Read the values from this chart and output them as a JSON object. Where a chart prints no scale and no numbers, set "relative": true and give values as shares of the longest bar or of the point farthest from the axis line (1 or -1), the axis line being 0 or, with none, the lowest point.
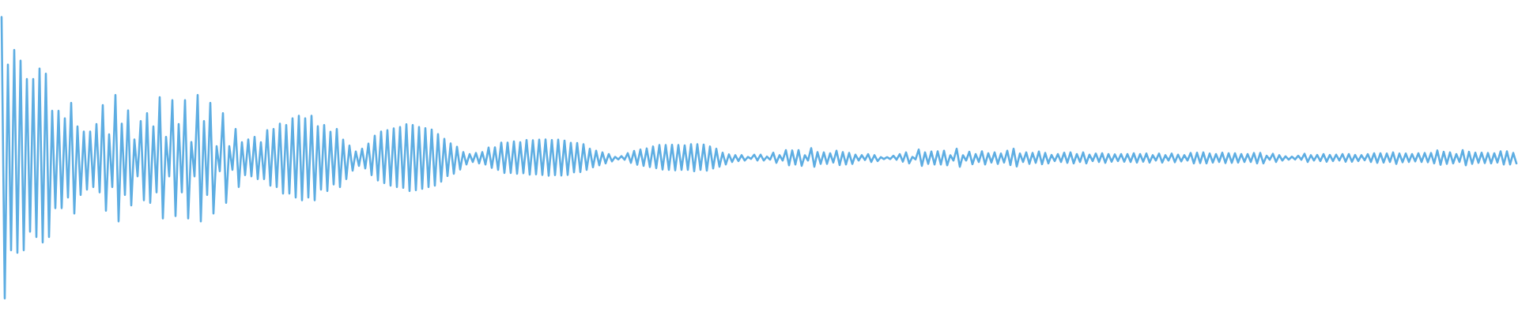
{
  "chart_data": {
    "type": "line",
    "relative": true,
    "color": "#5dade2",
    "categories": [
      null,
      null,
      null,
      null,
      null,
      null,
      null,
      null,
      null,
      null,
      null,
      null,
      null,
      null,
      null,
      null,
      null,
      null,
      null,
      null,
      null,
      null,
      null,
      null,
      null,
      null,
      null,
      null,
      null,
      null,
      null,
      null,
      null,
      null,
      null,
      null,
      null,
      null,
      null,
      null,
      null,
      null,
      null,
      null,
      null,
      null,
      null,
      null,
      null,
      null,
      null,
      null,
      null,
      null,
      null,
      null,
      null,
      null,
      null,
      null,
      null,
      null,
      null,
      null,
      null,
      null,
      null,
      null,
      null,
      null,
      null,
      null,
      null,
      null,
      null,
      null,
      null,
      null,
      null,
      null,
      null,
      null,
      null,
      null,
      null,
      null,
      null,
      null,
      null,
      null,
      null,
      null,
      null,
      null,
      null,
      null,
      null,
      null,
      null,
      null,
      null,
      null,
      null,
      null,
      null,
      null,
      null,
      null,
      null,
      null,
      null,
      null,
      null,
      null,
      null,
      null,
      null,
      null,
      null,
      null,
      null,
      null,
      null,
      null,
      null,
      null,
      null,
      null,
      null,
      null,
      null,
      null,
      null,
      null,
      null,
      null,
      null,
      null,
      null,
      null,
      null,
      null,
      null,
      null,
      null,
      null,
      null,
      null,
      null,
      null,
      null,
      null,
      null,
      null,
      null,
      null,
      null,
      null,
      null,
      null,
      null,
      null,
      null,
      null,
      null,
      null,
      null,
      null,
      null,
      null,
      null,
      null,
      null,
      null,
      null,
      null,
      null,
      null,
      null,
      null,
      null,
      null,
      null,
      null,
      null,
      null,
      null,
      null,
      null,
      null,
      null,
      null,
      null,
      null,
      null,
      null,
      null,
      null,
      null,
      null,
      null,
      null,
      null,
      null,
      null,
      null,
      null,
      null,
      null,
      null,
      null,
      null,
      null,
      null,
      null,
      null,
      null,
      null,
      null,
      null,
      null,
      null,
      null,
      null,
      null,
      null,
      null,
      null,
      null,
      null,
      null,
      null,
      null,
      null,
      null,
      null,
      null,
      null,
      null,
      null,
      null,
      null,
      null,
      null,
      null,
      null,
      null,
      null,
      null,
      null,
      null,
      null,
      null,
      null,
      null,
      null,
      null,
      null,
      null,
      null,
      null,
      null,
      null,
      null,
      null,
      null,
      null,
      null,
      null,
      null,
      null,
      null,
      null,
      null,
      null,
      null,
      null,
      null,
      null,
      null,
      null,
      null,
      null,
      null,
      null,
      null,
      null,
      null,
      null,
      null,
      null,
      null,
      null,
      null,
      null,
      null,
      null,
      null,
      null,
      null,
      null,
      null,
      null,
      null,
      null,
      null,
      null,
      null,
      null,
      null,
      null,
      null,
      null,
      null,
      null,
      null,
      null,
      null,
      null,
      null,
      null,
      null,
      null,
      null,
      null,
      null,
      null,
      null,
      null,
      null,
      null,
      null,
      null,
      null,
      null,
      null,
      null,
      null,
      null,
      null,
      null,
      null,
      null,
      null,
      null,
      null,
      null,
      null,
      null,
      null,
      null,
      null,
      null,
      null,
      null,
      null,
      null,
      null,
      null,
      null,
      null,
      null,
      null,
      null,
      null,
      null,
      null,
      null,
      null,
      null,
      null,
      null,
      null,
      null,
      null,
      null,
      null,
      null,
      null,
      null,
      null,
      null,
      null,
      null,
      null,
      null,
      null,
      null,
      null,
      null,
      null,
      null,
      null,
      null,
      null,
      null,
      null,
      null,
      null,
      null,
      null,
      null,
      null,
      null,
      null,
      null,
      null,
      null,
      null,
      null,
      null,
      null,
      null,
      null,
      null,
      null,
      null,
      null,
      null,
      null,
      null,
      null,
      null,
      null,
      null,
      null,
      null,
      null,
      null,
      null,
      null,
      null,
      null,
      null,
      null,
      null,
      null,
      null,
      null,
      null,
      null,
      null,
      null,
      null,
      null,
      null,
      null,
      null,
      null,
      null,
      null,
      null,
      null,
      null,
      null,
      null,
      null,
      null,
      null,
      null,
      null,
      null,
      null,
      null,
      null,
      null,
      null,
      null,
      null,
      null,
      null,
      null,
      null,
      null,
      null,
      null,
      null,
      null,
      null,
      null
    ],
    "values": [
      1,
      0,
      0.831,
      0.171,
      0.883,
      0.162,
      0.845,
      0.171,
      0.78,
      0.237,
      0.78,
      0.218,
      0.817,
      0.199,
      0.799,
      0.218,
      0.667,
      0.321,
      0.667,
      0.321,
      0.64,
      0.359,
      0.695,
      0.302,
      0.611,
      0.368,
      0.593,
      0.387,
      0.593,
      0.396,
      0.62,
      0.377,
      0.687,
      0.312,
      0.583,
      0.396,
      0.723,
      0.274,
      0.621,
      0.368,
      0.668,
      0.331,
      0.565,
      0.434,
      0.63,
      0.349,
      0.658,
      0.34,
      0.611,
      0.377,
      0.715,
      0.284,
      0.574,
      0.434,
      0.705,
      0.293,
      0.62,
      0.377,
      0.705,
      0.284,
      0.556,
      0.434,
      0.723,
      0.274,
      0.63,
      0.368,
      0.695,
      0.302,
      0.541,
      0.452,
      0.658,
      0.34,
      0.541,
      0.457,
      0.602,
      0.396,
      0.555,
      0.438,
      0.565,
      0.434,
      0.574,
      0.424,
      0.555,
      0.424,
      0.598,
      0.401,
      0.602,
      0.396,
      0.621,
      0.373,
      0.616,
      0.373,
      0.64,
      0.359,
      0.649,
      0.349,
      0.64,
      0.359,
      0.649,
      0.349,
      0.612,
      0.387,
      0.616,
      0.382,
      0.592,
      0.405,
      0.602,
      0.396,
      0.564,
      0.424,
      0.543,
      0.454,
      0.522,
      0.471,
      0.532,
      0.462,
      0.55,
      0.438,
      0.578,
      0.419,
      0.593,
      0.41,
      0.598,
      0.401,
      0.604,
      0.396,
      0.609,
      0.393,
      0.619,
      0.382,
      0.616,
      0.385,
      0.609,
      0.39,
      0.605,
      0.396,
      0.6,
      0.401,
      0.584,
      0.415,
      0.567,
      0.435,
      0.551,
      0.443,
      0.539,
      0.458,
      0.52,
      0.476,
      0.513,
      0.485,
      0.517,
      0.48,
      0.52,
      0.476,
      0.536,
      0.464,
      0.537,
      0.457,
      0.554,
      0.446,
      0.554,
      0.446,
      0.558,
      0.443,
      0.555,
      0.445,
      0.563,
      0.44,
      0.562,
      0.441,
      0.564,
      0.439,
      0.565,
      0.436,
      0.563,
      0.438,
      0.564,
      0.437,
      0.561,
      0.439,
      0.553,
      0.448,
      0.552,
      0.449,
      0.548,
      0.457,
      0.532,
      0.466,
      0.525,
      0.473,
      0.519,
      0.48,
      0.513,
      0.487,
      0.503,
      0.494,
      0.506,
      0.493,
      0.516,
      0.482,
      0.524,
      0.475,
      0.529,
      0.471,
      0.533,
      0.467,
      0.54,
      0.463,
      0.545,
      0.458,
      0.545,
      0.457,
      0.546,
      0.455,
      0.545,
      0.457,
      0.544,
      0.457,
      0.548,
      0.452,
      0.548,
      0.457,
      0.547,
      0.454,
      0.54,
      0.462,
      0.532,
      0.468,
      0.518,
      0.476,
      0.512,
      0.485,
      0.509,
      0.488,
      0.509,
      0.49,
      0.503,
      0.496,
      0.511,
      0.49,
      0.511,
      0.49,
      0.504,
      0.493,
      0.518,
      0.482,
      0.509,
      0.49,
      0.527,
      0.473,
      0.526,
      0.476,
      0.527,
      0.471,
      0.509,
      0.49,
      0.534,
      0.468,
      0.52,
      0.478,
      0.519,
      0.478,
      0.516,
      0.483,
      0.525,
      0.474,
      0.52,
      0.476,
      0.517,
      0.478,
      0.511,
      0.49,
      0.509,
      0.492,
      0.513,
      0.485,
      0.509,
      0.488,
      0.502,
      0.495,
      0.502,
      0.495,
      0.507,
      0.493,
      0.513,
      0.486,
      0.519,
      0.48,
      0.503,
      0.494,
      0.529,
      0.471,
      0.519,
      0.478,
      0.522,
      0.476,
      0.523,
      0.476,
      0.525,
      0.473,
      0.509,
      0.49,
      0.532,
      0.468,
      0.509,
      0.49,
      0.521,
      0.477,
      0.513,
      0.485,
      0.523,
      0.476,
      0.516,
      0.483,
      0.519,
      0.478,
      0.515,
      0.483,
      0.525,
      0.474,
      0.532,
      0.469,
      0.515,
      0.485,
      0.519,
      0.478,
      0.517,
      0.482,
      0.522,
      0.477,
      0.517,
      0.48,
      0.51,
      0.488,
      0.513,
      0.485,
      0.518,
      0.482,
      0.519,
      0.48,
      0.513,
      0.485,
      0.519,
      0.48,
      0.511,
      0.488,
      0.515,
      0.485,
      0.516,
      0.482,
      0.513,
      0.486,
      0.512,
      0.488,
      0.513,
      0.486,
      0.513,
      0.485,
      0.516,
      0.483,
      0.513,
      0.486,
      0.515,
      0.483,
      0.509,
      0.49,
      0.515,
      0.483,
      0.509,
      0.49,
      0.515,
      0.484,
      0.511,
      0.487,
      0.509,
      0.49,
      0.517,
      0.48,
      0.518,
      0.481,
      0.519,
      0.48,
      0.515,
      0.483,
      0.513,
      0.485,
      0.518,
      0.481,
      0.516,
      0.482,
      0.516,
      0.483,
      0.513,
      0.485,
      0.513,
      0.485,
      0.517,
      0.48,
      0.517,
      0.48,
      0.507,
      0.493,
      0.514,
      0.485,
      0.509,
      0.49,
      0.505,
      0.493,
      0.504,
      0.494,
      0.507,
      0.493,
      0.514,
      0.485,
      0.509,
      0.49,
      0.51,
      0.488,
      0.513,
      0.486,
      0.51,
      0.488,
      0.511,
      0.49,
      0.513,
      0.486,
      0.513,
      0.486,
      0.51,
      0.488,
      0.509,
      0.491,
      0.513,
      0.485,
      0.516,
      0.482,
      0.516,
      0.483,
      0.515,
      0.485,
      0.519,
      0.478,
      0.515,
      0.484,
      0.515,
      0.485,
      0.513,
      0.487,
      0.516,
      0.485,
      0.517,
      0.484,
      0.517,
      0.48,
      0.526,
      0.475,
      0.521,
      0.478,
      0.519,
      0.48,
      0.513,
      0.485,
      0.527,
      0.473,
      0.521,
      0.478,
      0.518,
      0.482,
      0.518,
      0.481,
      0.517,
      0.48,
      0.516,
      0.483,
      0.523,
      0.476,
      0.523,
      0.476,
      0.517,
      0.48
    ]
  }
}
